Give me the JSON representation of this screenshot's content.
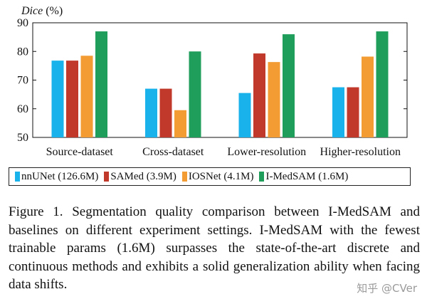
{
  "chart_data": {
    "type": "bar",
    "ylabel": "Dice (%)",
    "ylim": [
      50,
      90
    ],
    "yticks": [
      50,
      60,
      70,
      80,
      90
    ],
    "categories": [
      "Source-dataset",
      "Cross-dataset",
      "Lower-resolution",
      "Higher-resolution"
    ],
    "series": [
      {
        "name": "nnUNet (126.6M)",
        "color": "#1ab2ea",
        "values": [
          76.8,
          67.0,
          65.5,
          67.5
        ]
      },
      {
        "name": "SAMed (3.9M)",
        "color": "#c0392b",
        "values": [
          76.8,
          67.0,
          79.3,
          67.5
        ]
      },
      {
        "name": "IOSNet (4.1M)",
        "color": "#f39c33",
        "values": [
          78.5,
          59.5,
          76.3,
          78.2
        ]
      },
      {
        "name": "I-MedSAM (1.6M)",
        "color": "#1e9e5a",
        "values": [
          87.0,
          80.0,
          86.0,
          87.0
        ]
      }
    ],
    "grid": false,
    "legend": "bottom"
  },
  "caption": "Figure 1.  Segmentation quality comparison between I-MedSAM and baselines on different experiment settings.  I-MedSAM with the fewest trainable params (1.6M) surpasses the state-of-the-art discrete and continuous methods and exhibits a solid generalization ability when facing data shifts.",
  "watermark": "知乎 @CVer"
}
